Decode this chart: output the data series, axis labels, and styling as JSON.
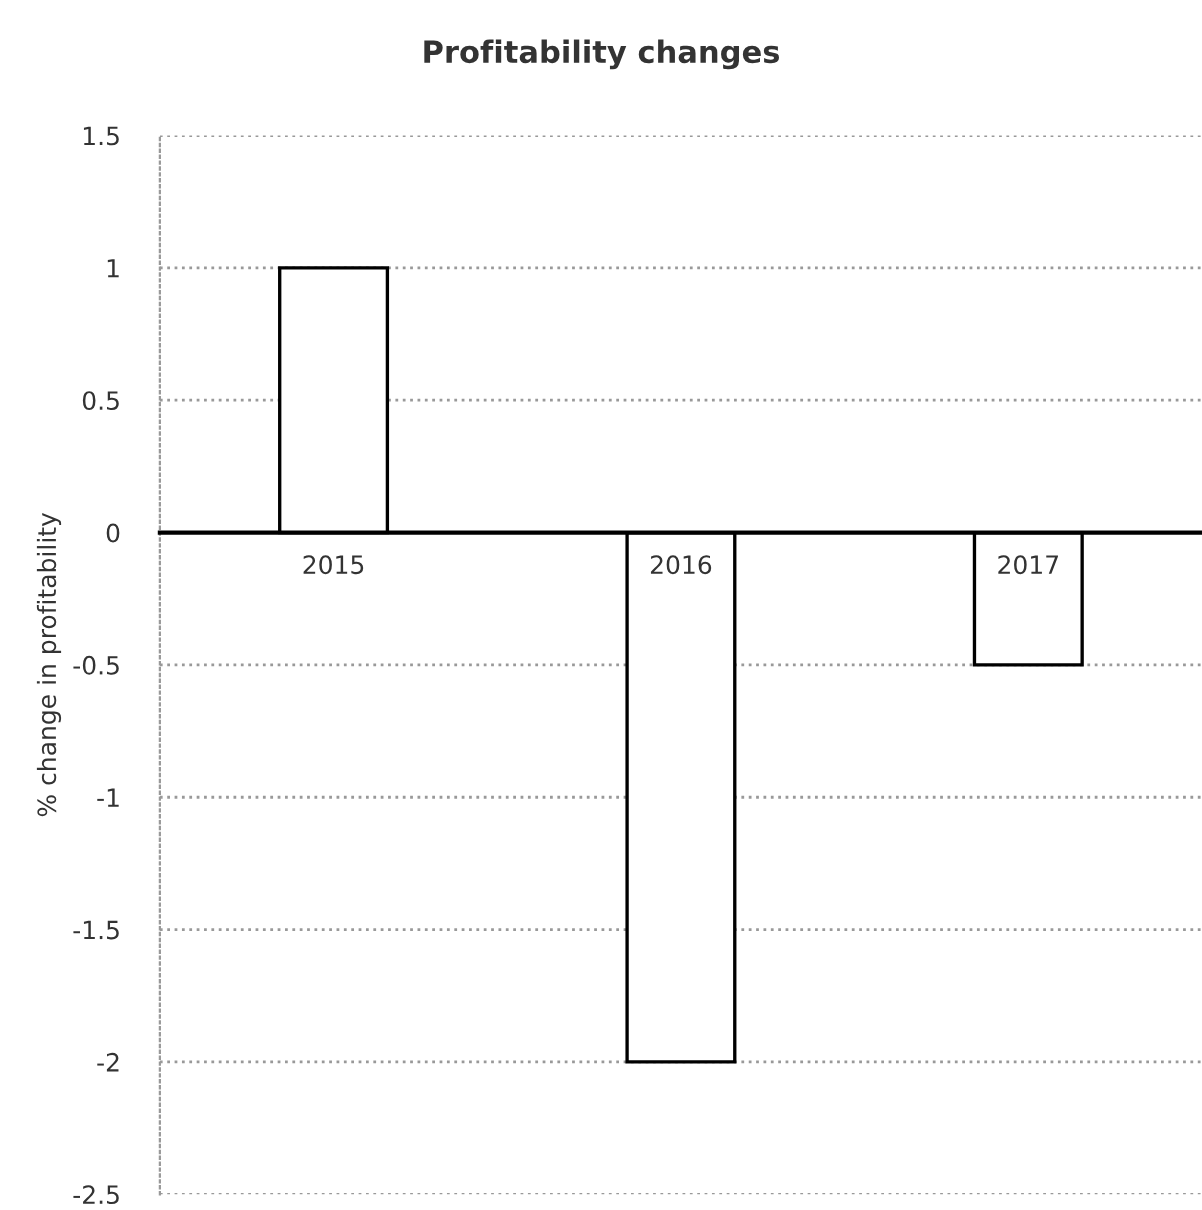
{
  "chart_data": {
    "type": "bar",
    "title": "Profitability changes",
    "ylabel": "% change in profitability",
    "categories": [
      "2015",
      "2016",
      "2017"
    ],
    "values": [
      1,
      -2,
      -0.5
    ],
    "color": "#ffffff",
    "ylim": [
      -2.5,
      1.5
    ],
    "yticks": [
      {
        "value": -2.5,
        "label": "-2.5"
      },
      {
        "value": -2,
        "label": "-2"
      },
      {
        "value": -1.5,
        "label": "-1.5"
      },
      {
        "value": -1,
        "label": "-1"
      },
      {
        "value": -0.5,
        "label": "-0.5"
      },
      0,
      0.5,
      1,
      1.5
    ],
    "grid": "y"
  }
}
